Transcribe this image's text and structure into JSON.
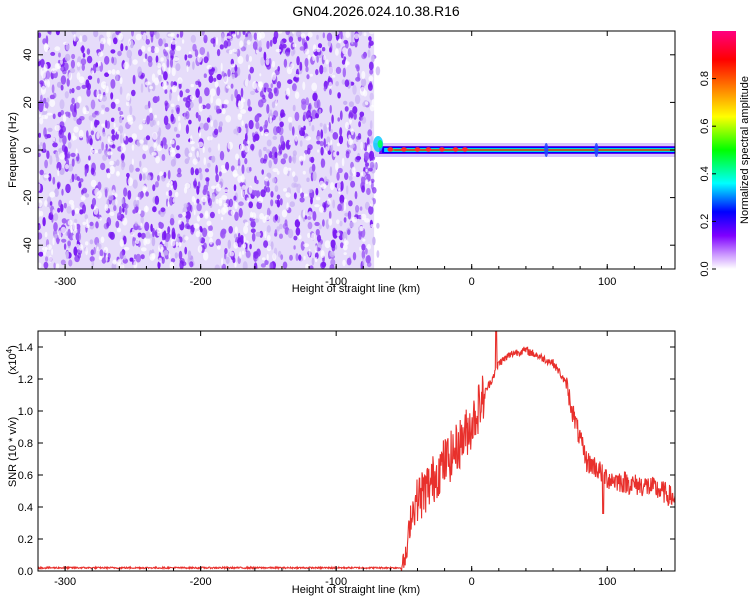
{
  "title": "GN04.2026.024.10.38.R16",
  "colors": {
    "signal_line": "#e8302c",
    "scatter_purple": "#7a1bf2",
    "scatter_light": "#c9b2f4",
    "axis": "#000000"
  },
  "chart_data": [
    {
      "type": "heatmap",
      "xlabel": "Height of straight line (km)",
      "ylabel": "Frequency (Hz)",
      "xlim": [
        -320,
        150
      ],
      "ylim": [
        -50,
        50
      ],
      "xticks": [
        -300,
        -200,
        -100,
        0,
        100
      ],
      "xtick_labels": [
        "-300",
        "-200",
        "-100",
        "0",
        "100"
      ],
      "yticks": [
        -40,
        -20,
        0,
        20,
        40
      ],
      "ytick_labels": [
        "-40",
        "-20",
        "0",
        "20",
        "40"
      ],
      "noise_region_x": [
        -320,
        -72
      ],
      "signal_start_x": -72,
      "signal_frequency_hz": 0,
      "colorbar": {
        "label": "Normalized spectral amplitude",
        "range": [
          0,
          1
        ],
        "ticks": [
          0.0,
          0.2,
          0.4,
          0.6,
          0.8
        ],
        "tick_labels": [
          "0.0",
          "0.2",
          "0.4",
          "0.6",
          "0.8"
        ],
        "colormap": [
          "#ffffff",
          "#cc99ff",
          "#7f00ff",
          "#0000ff",
          "#00ffff",
          "#00ff00",
          "#ffff00",
          "#ff7f00",
          "#ff0000",
          "#ff0080"
        ]
      }
    },
    {
      "type": "line",
      "xlabel": "Height of straight line (km)",
      "ylabel": "SNR (10 * v/v)",
      "scale_label": "(x10",
      "scale_exponent": "4",
      "xlim": [
        -320,
        150
      ],
      "ylim": [
        0,
        1.5
      ],
      "xticks": [
        -300,
        -200,
        -100,
        0,
        100
      ],
      "xtick_labels": [
        "-300",
        "-200",
        "-100",
        "0",
        "100"
      ],
      "yticks": [
        0,
        0.2,
        0.4,
        0.6,
        0.8,
        1.0,
        1.2,
        1.4
      ],
      "ytick_labels": [
        "0.0",
        "0.2",
        "0.4",
        "0.6",
        "0.8",
        "1.0",
        "1.2",
        "1.4"
      ],
      "series": [
        {
          "x": [
            -320,
            -250,
            -150,
            -60,
            -52,
            -48,
            -45,
            -40,
            -35,
            -30,
            -25,
            -20,
            -15,
            -10,
            -5,
            0,
            5,
            10,
            15,
            20,
            25,
            30,
            35,
            40,
            45,
            50,
            55,
            60,
            65,
            70,
            75,
            80,
            85,
            90,
            95,
            100,
            110,
            120,
            130,
            140,
            150
          ],
          "y": [
            0.02,
            0.02,
            0.02,
            0.02,
            0.02,
            0.1,
            0.35,
            0.45,
            0.5,
            0.55,
            0.62,
            0.68,
            0.72,
            0.78,
            0.85,
            0.92,
            1.02,
            1.12,
            1.2,
            1.3,
            1.33,
            1.36,
            1.37,
            1.38,
            1.36,
            1.34,
            1.32,
            1.3,
            1.24,
            1.16,
            0.98,
            0.82,
            0.68,
            0.66,
            0.62,
            0.58,
            0.56,
            0.54,
            0.53,
            0.5,
            0.45
          ]
        }
      ]
    }
  ]
}
